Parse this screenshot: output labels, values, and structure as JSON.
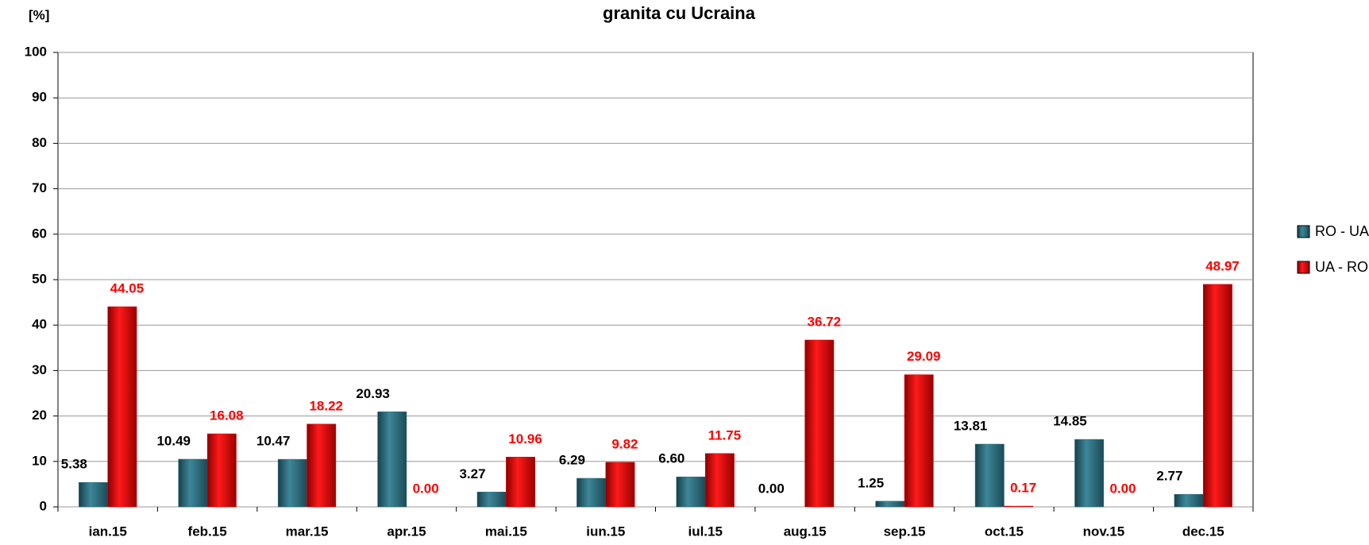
{
  "chart_data": {
    "type": "bar",
    "title": "granita cu Ucraina",
    "y_label": "[%]",
    "categories": [
      "ian.15",
      "feb.15",
      "mar.15",
      "apr.15",
      "mai.15",
      "iun.15",
      "iul.15",
      "aug.15",
      "sep.15",
      "oct.15",
      "nov.15",
      "dec.15"
    ],
    "series": [
      {
        "name": "RO - UA",
        "color": "#2a6b7c",
        "label_color": "#000000",
        "values": [
          5.38,
          10.49,
          10.47,
          20.93,
          3.27,
          6.29,
          6.6,
          0,
          1.25,
          13.81,
          14.85,
          2.77
        ],
        "value_labels": [
          "5.38",
          "10.49",
          "10.47",
          "20.93",
          "3.27",
          "6.29",
          "6.60",
          "0.00",
          "1.25",
          "13.81",
          "14.85",
          "2.77"
        ]
      },
      {
        "name": "UA - RO",
        "color": "#e00000",
        "label_color": "#ff0000",
        "values": [
          44.05,
          16.08,
          18.22,
          0,
          10.96,
          9.82,
          11.75,
          36.72,
          29.09,
          0.17,
          0,
          48.97
        ],
        "value_labels": [
          "44.05",
          "16.08",
          "18.22",
          "0.00",
          "10.96",
          "9.82",
          "11.75",
          "36.72",
          "29.09",
          "0.17",
          "0.00",
          "48.97"
        ]
      }
    ],
    "ylim": [
      0,
      100
    ],
    "yticks": [
      0,
      10,
      20,
      30,
      40,
      50,
      60,
      70,
      80,
      90,
      100
    ],
    "grid": true,
    "legend": "right"
  }
}
